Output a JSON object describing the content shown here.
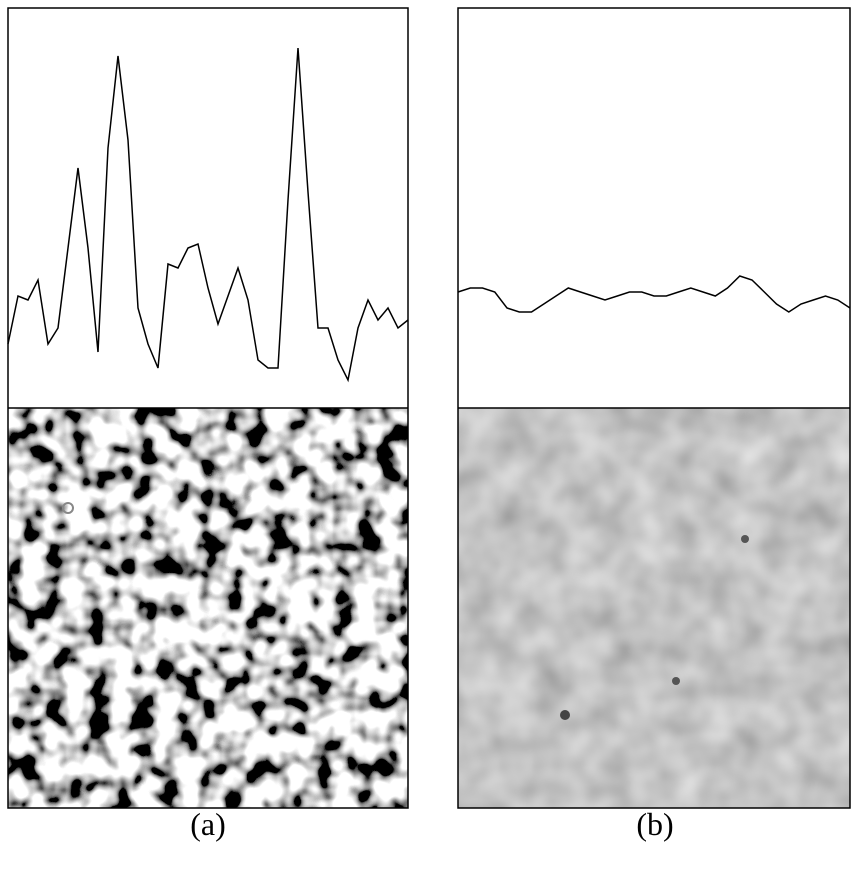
{
  "chart_data": [
    {
      "type": "line",
      "label": "(a)",
      "color": "#000000",
      "ylim": [
        0,
        100
      ],
      "values": [
        16,
        28,
        27,
        32,
        16,
        20,
        40,
        60,
        40,
        14,
        65,
        88,
        67,
        25,
        16,
        10,
        36,
        35,
        40,
        41,
        30,
        21,
        28,
        35,
        27,
        12,
        10,
        10,
        52,
        90,
        54,
        20,
        20,
        12,
        7,
        20,
        27,
        22,
        25,
        20,
        22
      ]
    },
    {
      "type": "line",
      "label": "(b)",
      "color": "#000000",
      "ylim": [
        0,
        100
      ],
      "values": [
        29,
        30,
        30,
        29,
        25,
        24,
        24,
        26,
        28,
        30,
        29,
        28,
        27,
        28,
        29,
        29,
        28,
        28,
        29,
        30,
        29,
        28,
        30,
        33,
        32,
        29,
        26,
        24,
        26,
        27,
        28,
        27,
        25
      ]
    }
  ]
}
